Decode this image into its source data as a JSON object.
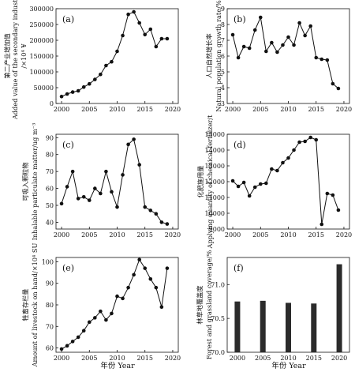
{
  "chart_data": [
    {
      "type": "line",
      "panel": "(a)",
      "ylabel": [
        "第二产业增加值",
        "Added value of the secondary industry",
        "/×10⁴ ¥"
      ],
      "x": [
        2000,
        2001,
        2002,
        2003,
        2004,
        2005,
        2006,
        2007,
        2008,
        2009,
        2010,
        2011,
        2012,
        2013,
        2014,
        2015,
        2016,
        2017,
        2018,
        2019
      ],
      "values": [
        22000,
        30000,
        36000,
        40000,
        52000,
        62000,
        76000,
        92000,
        120000,
        132000,
        165000,
        215000,
        282000,
        290000,
        255000,
        218000,
        235000,
        180000,
        205000,
        205000
      ],
      "xlim": [
        1999,
        2021
      ],
      "ylim": [
        0,
        300000
      ],
      "xticks": [
        2000,
        2005,
        2010,
        2015,
        2020
      ],
      "yticks": [
        0,
        50000,
        100000,
        150000,
        200000,
        250000,
        300000
      ]
    },
    {
      "type": "line",
      "panel": "(b)",
      "ylabel": [
        "人口自然增长率",
        "Natural population growth rate/%"
      ],
      "x": [
        2000,
        2001,
        2002,
        2003,
        2004,
        2005,
        2006,
        2007,
        2008,
        2009,
        2010,
        2011,
        2012,
        2013,
        2014,
        2015,
        2016,
        2017,
        2018,
        2019
      ],
      "values": [
        7.35,
        5.9,
        6.6,
        6.5,
        7.65,
        8.45,
        6.3,
        6.85,
        6.25,
        6.7,
        7.2,
        6.7,
        8.1,
        7.3,
        7.9,
        5.9,
        5.8,
        5.75,
        4.25,
        3.95
      ],
      "xlim": [
        1999,
        2021
      ],
      "ylim": [
        3,
        9
      ],
      "xticks": [
        2000,
        2005,
        2010,
        2015,
        2020
      ],
      "yticks": [
        3,
        4,
        5,
        6,
        7,
        8,
        9
      ]
    },
    {
      "type": "line",
      "panel": "(c)",
      "ylabel": [
        "可吸入颗粒物",
        "Inhalable particulate matter/ug m⁻³"
      ],
      "x": [
        2000,
        2001,
        2002,
        2003,
        2004,
        2005,
        2006,
        2007,
        2008,
        2009,
        2010,
        2011,
        2012,
        2013,
        2014,
        2015,
        2016,
        2017,
        2018,
        2019
      ],
      "values": [
        51,
        61,
        70,
        54,
        55,
        53,
        60,
        57,
        70,
        58,
        49,
        68,
        86,
        89,
        74,
        49,
        47,
        45,
        40,
        39
      ],
      "xlim": [
        1999,
        2021
      ],
      "ylim": [
        36,
        92
      ],
      "xticks": [
        2000,
        2005,
        2010,
        2015,
        2020
      ],
      "yticks": [
        40,
        50,
        60,
        70,
        80,
        90
      ]
    },
    {
      "type": "line",
      "panel": "(d)",
      "ylabel": [
        "化肥施用量",
        "Applying quantity of chemical fertilizer/t"
      ],
      "x": [
        2000,
        2001,
        2002,
        2003,
        2004,
        2005,
        2006,
        2007,
        2008,
        2009,
        2010,
        2011,
        2012,
        2013,
        2014,
        2015,
        2016,
        2017,
        2018,
        2019
      ],
      "values": [
        12050,
        11700,
        11950,
        11100,
        11650,
        11850,
        11900,
        12800,
        12700,
        13200,
        13500,
        14000,
        14500,
        14550,
        14800,
        14650,
        9300,
        11250,
        11150,
        10200
      ],
      "xlim": [
        1999,
        2021
      ],
      "ylim": [
        9000,
        15000
      ],
      "xticks": [
        2000,
        2005,
        2010,
        2015,
        2020
      ],
      "yticks": [
        9000,
        10000,
        11000,
        12000,
        13000,
        14000,
        15000
      ]
    },
    {
      "type": "line",
      "panel": "(e)",
      "ylabel": [
        "牲畜存栏量",
        "Amount of livestock on hand/×10⁴ SU"
      ],
      "x": [
        2000,
        2001,
        2002,
        2003,
        2004,
        2005,
        2006,
        2007,
        2008,
        2009,
        2010,
        2011,
        2012,
        2013,
        2014,
        2015,
        2016,
        2017,
        2018,
        2019
      ],
      "values": [
        59.5,
        61,
        63,
        65,
        68,
        72,
        74,
        77,
        73,
        76,
        84,
        83,
        88,
        94,
        101,
        97,
        92,
        88,
        79,
        97
      ],
      "xlim": [
        1999,
        2021
      ],
      "ylim": [
        58,
        102
      ],
      "xticks": [
        2000,
        2005,
        2010,
        2015,
        2020
      ],
      "yticks": [
        60,
        70,
        80,
        90,
        100
      ]
    },
    {
      "type": "bar",
      "panel": "(f)",
      "ylabel": [
        "林草地覆盖度",
        "Forest and grassland coverage/%"
      ],
      "categories": [
        2000,
        2005,
        2010,
        2015,
        2020
      ],
      "values": [
        70.75,
        70.76,
        70.73,
        70.72,
        71.3
      ],
      "xlim": [
        1998,
        2022
      ],
      "ylim": [
        70.0,
        71.4
      ],
      "xticks": [
        2000,
        2005,
        2010,
        2015,
        2020
      ],
      "yticks": [
        70.0,
        70.5,
        71.0
      ]
    }
  ],
  "xtitle": [
    "年份 Year",
    "年份 Year"
  ],
  "colors": {
    "ink": "#111111",
    "bar": "#2b2b2b"
  }
}
